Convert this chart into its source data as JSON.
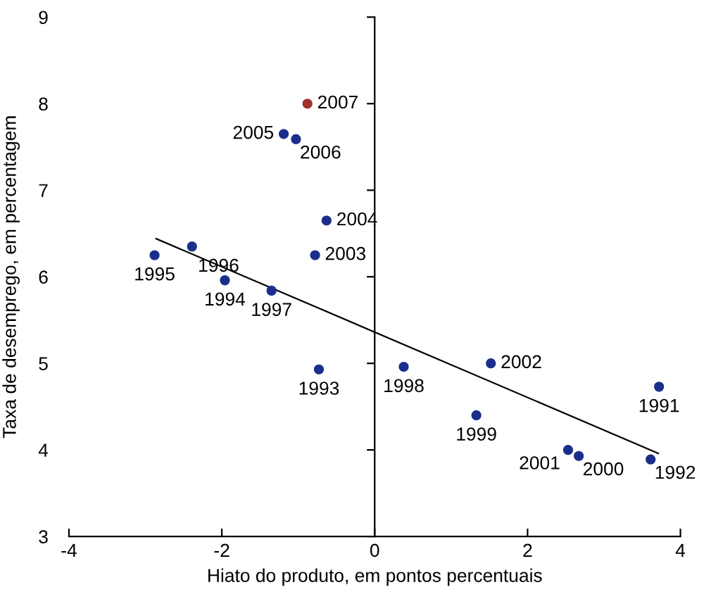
{
  "chart_data": {
    "type": "scatter",
    "xlabel": "Hiato do produto, em pontos percentuais",
    "ylabel": "Taxa de desemprego, em percentagem",
    "xlim": [
      -4,
      4
    ],
    "xticks": [
      -4,
      -2,
      0,
      2,
      4
    ],
    "ylim": [
      3,
      9
    ],
    "yticks": [
      3,
      4,
      5,
      6,
      7,
      8,
      9
    ],
    "annotations": [
      {
        "text": "1991",
        "x": 3.72,
        "y": 4.73
      },
      {
        "text": "1992",
        "x": 3.61,
        "y": 3.89
      },
      {
        "text": "1993",
        "x": -0.73,
        "y": 4.93
      },
      {
        "text": "1994",
        "x": -1.96,
        "y": 5.96
      },
      {
        "text": "1995",
        "x": -2.88,
        "y": 6.25
      },
      {
        "text": "1996",
        "x": -2.39,
        "y": 6.35
      },
      {
        "text": "1997",
        "x": -1.35,
        "y": 5.84
      },
      {
        "text": "1998",
        "x": 0.38,
        "y": 4.96
      },
      {
        "text": "1999",
        "x": 1.33,
        "y": 4.4
      },
      {
        "text": "2000",
        "x": 2.67,
        "y": 3.93
      },
      {
        "text": "2001",
        "x": 2.53,
        "y": 4.0
      },
      {
        "text": "2002",
        "x": 1.52,
        "y": 5.0
      },
      {
        "text": "2003",
        "x": -0.78,
        "y": 6.25
      },
      {
        "text": "2004",
        "x": -0.63,
        "y": 6.65
      },
      {
        "text": "2005",
        "x": -1.19,
        "y": 7.65
      },
      {
        "text": "2006",
        "x": -1.03,
        "y": 7.59
      },
      {
        "text": "2007",
        "x": -0.88,
        "y": 8.0
      }
    ],
    "series": [
      {
        "marker": "circle",
        "x": [
          3.72,
          3.61,
          -0.73,
          -1.96,
          -2.88,
          -2.39,
          -1.35,
          0.38,
          1.33,
          2.67,
          2.53,
          1.52,
          -0.78,
          -0.63,
          -1.19,
          -1.03,
          -0.88
        ],
        "values": [
          4.73,
          3.89,
          4.93,
          5.96,
          6.25,
          6.35,
          5.84,
          4.96,
          4.4,
          3.93,
          4.0,
          5.0,
          6.25,
          6.65,
          7.65,
          7.59,
          8.0
        ],
        "colors": [
          "#1a2f8c",
          "#1a2f8c",
          "#1a2f8c",
          "#1a2f8c",
          "#1a2f8c",
          "#1a2f8c",
          "#1a2f8c",
          "#1a2f8c",
          "#1a2f8c",
          "#1a2f8c",
          "#1a2f8c",
          "#1a2f8c",
          "#1a2f8c",
          "#1a2f8c",
          "#1a2f8c",
          "#1a2f8c",
          "#a0302a"
        ]
      },
      {
        "type": "line",
        "x": [
          -2.86,
          3.71
        ],
        "values": [
          6.44,
          3.96
        ],
        "color": "#000000"
      }
    ]
  }
}
